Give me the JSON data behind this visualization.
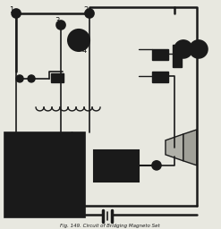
{
  "title": "Fig. 149. Circuit of Bridging Magneto Set",
  "bg_color": "#e8e8e0",
  "line_color": "#1a1a1a",
  "lw": 1.4,
  "fig_width": 2.47,
  "fig_height": 2.56
}
